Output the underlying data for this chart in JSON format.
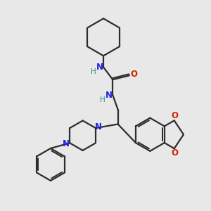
{
  "bg_color": "#e8e8e8",
  "bond_color": "#2d2d2d",
  "n_color": "#2222dd",
  "o_color": "#cc2200",
  "h_color": "#2d8b8b",
  "line_width": 1.6,
  "figsize": [
    3.0,
    3.0
  ],
  "dpi": 100,
  "xlim": [
    0,
    10
  ],
  "ylim": [
    0,
    10
  ]
}
